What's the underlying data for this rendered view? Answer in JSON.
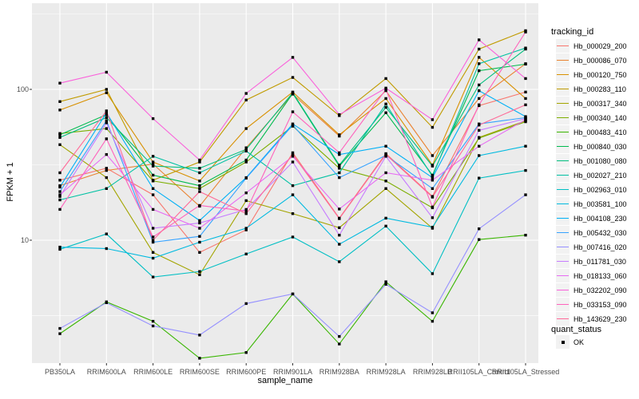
{
  "legend": {
    "tracking_title": "tracking_id",
    "quant_title": "quant_status",
    "quant_items": [
      {
        "label": "OK",
        "color": "#000000"
      }
    ]
  },
  "chart_data": {
    "type": "line",
    "title": "",
    "xlabel": "sample_name",
    "ylabel": "FPKM + 1",
    "y_scale": "log10",
    "ylim": [
      1.45,
      360
    ],
    "grid": true,
    "legend_position": "right",
    "point_shape": "black-square",
    "y_major_ticks": [
      {
        "label": "100",
        "value": 100
      },
      {
        "label": "10",
        "value": 10
      }
    ],
    "y_minor_ticks": [
      316.23,
      31.62,
      3.16
    ],
    "categories": [
      "PB350LA",
      "RRIM600LA",
      "RRIM600LE",
      "RRIM600SE",
      "RRIM600PE",
      "RRIM901LA",
      "RRIM928BA",
      "RRIM928LA",
      "RRIM928LB",
      "RRII105LA_Control",
      "RRII105LA_Stressed"
    ],
    "series": [
      {
        "name": "Hb_000029_200",
        "color": "#F8766D",
        "values": [
          25,
          30,
          20,
          8.3,
          11.7,
          38,
          14,
          37.5,
          19.5,
          78,
          96
        ]
      },
      {
        "name": "Hb_000086_070",
        "color": "#EA8331",
        "values": [
          23,
          29,
          32,
          16.8,
          41,
          93,
          49,
          98,
          36.4,
          87,
          148
        ]
      },
      {
        "name": "Hb_000120_750",
        "color": "#D89000",
        "values": [
          73,
          95,
          33,
          24.7,
          55,
          96,
          50,
          87,
          31.5,
          163,
          87
        ]
      },
      {
        "name": "Hb_000283_110",
        "color": "#C09B00",
        "values": [
          83,
          100,
          25,
          33,
          85,
          120,
          67,
          118,
          56,
          185,
          245
        ]
      },
      {
        "name": "Hb_000317_340",
        "color": "#A3A500",
        "values": [
          43,
          26,
          8.3,
          5.9,
          18.3,
          15,
          12.1,
          22,
          12,
          48,
          62
        ]
      },
      {
        "name": "Hb_000340_140",
        "color": "#7CAE00",
        "values": [
          51,
          55,
          24.7,
          22,
          33,
          57,
          30,
          24.7,
          16.4,
          47.5,
          61
        ]
      },
      {
        "name": "Hb_000483_410",
        "color": "#39B600",
        "values": [
          2.4,
          3.9,
          2.9,
          1.65,
          1.8,
          4.4,
          2.05,
          5.3,
          2.9,
          10.1,
          10.8
        ]
      },
      {
        "name": "Hb_000840_030",
        "color": "#00BB4E",
        "values": [
          50,
          68,
          27,
          23,
          34,
          94,
          31,
          70,
          27,
          133,
          147
        ]
      },
      {
        "name": "Hb_001080_080",
        "color": "#00BF7D",
        "values": [
          48,
          65,
          31,
          30,
          40,
          95,
          31.5,
          76,
          31,
          107,
          185
        ]
      },
      {
        "name": "Hb_002027_210",
        "color": "#00C1A3",
        "values": [
          18.5,
          22,
          36,
          28,
          39,
          23,
          28,
          80,
          26.5,
          148,
          188
        ]
      },
      {
        "name": "Hb_002963_010",
        "color": "#00BFC4",
        "values": [
          8.7,
          11,
          5.7,
          6.2,
          8.1,
          10.5,
          7.2,
          12.4,
          6,
          25.8,
          29
        ]
      },
      {
        "name": "Hb_003581_100",
        "color": "#00BAE0",
        "values": [
          9,
          8.8,
          7.6,
          9.7,
          12,
          20,
          9.4,
          14,
          12.2,
          36.4,
          42
        ]
      },
      {
        "name": "Hb_004108_230",
        "color": "#00B0F6",
        "values": [
          22.5,
          70,
          22,
          13.5,
          26,
          59,
          37,
          42,
          26,
          98,
          66
        ]
      },
      {
        "name": "Hb_005432_030",
        "color": "#35A2FF",
        "values": [
          21,
          62,
          9.7,
          10.6,
          25.8,
          58,
          26,
          36.5,
          22,
          59,
          65
        ]
      },
      {
        "name": "Hb_007416_020",
        "color": "#9590FF",
        "values": [
          2.6,
          3.85,
          2.7,
          2.35,
          3.8,
          4.4,
          2.3,
          5.1,
          3.3,
          11.9,
          20
        ]
      },
      {
        "name": "Hb_011781_030",
        "color": "#C77CFF",
        "values": [
          19.5,
          60,
          12,
          13,
          16,
          33,
          10.8,
          36,
          14.1,
          53.5,
          64
        ]
      },
      {
        "name": "Hb_018133_060",
        "color": "#E76BF3",
        "values": [
          20,
          37,
          16,
          12,
          20.6,
          36,
          16.1,
          28,
          25,
          42,
          63
        ]
      },
      {
        "name": "Hb_032202_090",
        "color": "#FA62DB",
        "values": [
          110,
          130,
          64,
          34,
          94,
          163,
          68,
          102,
          63,
          213,
          118
        ]
      },
      {
        "name": "Hb_033153_090",
        "color": "#FF62BC",
        "values": [
          16,
          47,
          10.5,
          17,
          15.6,
          71,
          38,
          100,
          16.6,
          79,
          240
        ]
      },
      {
        "name": "Hb_143629_230",
        "color": "#FF6A98",
        "values": [
          28,
          72,
          10,
          21,
          15,
          37,
          13.9,
          37,
          19.3,
          58,
          79
        ]
      }
    ]
  },
  "style": {
    "panel_bg": "#EBEBEB",
    "grid_color": "#FFFFFF",
    "tick_color": "#333333",
    "point_color": "#000000"
  }
}
